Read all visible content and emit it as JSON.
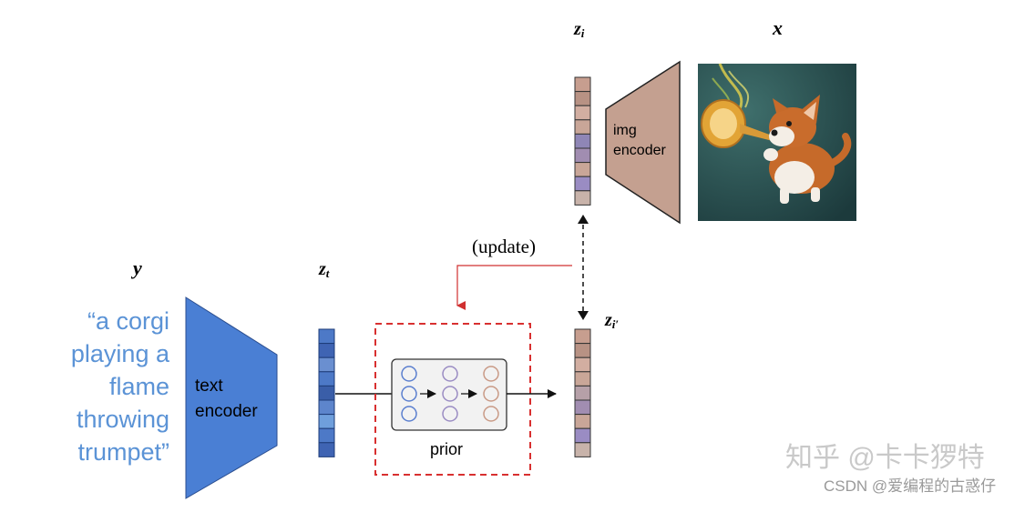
{
  "labels": {
    "y": "y",
    "zt_base": "z",
    "zt_sub": "t",
    "zi_base": "z",
    "zi_sub": "i",
    "zi2_base": "z",
    "zi2_sub": "i′",
    "x": "x",
    "update": "(update)"
  },
  "prompt_lines": [
    "“a corgi",
    "playing a",
    "flame",
    "throwing",
    "trumpet”"
  ],
  "text_encoder": [
    "text",
    "encoder"
  ],
  "img_encoder": [
    "img",
    "encoder"
  ],
  "prior_label": "prior",
  "watermark": {
    "line1": "知乎 @卡卡猡特",
    "line2": "CSDN @爱编程的古惑仔"
  },
  "colors": {
    "text_encoder": "#4a7fd4",
    "img_encoder": "#c4a090",
    "prompt_text": "#5b93d6",
    "update_arrow": "#d03030",
    "dashed_box": "#d83030"
  },
  "zt_cells": [
    "#4d79c7",
    "#3f64b3",
    "#6a8fd0",
    "#4d79c7",
    "#3a5ea8",
    "#5d85cc",
    "#6f9fdc",
    "#4d79c7",
    "#3f64b3"
  ],
  "zi_cells": [
    "#c79e8f",
    "#b89284",
    "#d2aea1",
    "#c9a698",
    "#8f86b6",
    "#a18db1",
    "#c9a698",
    "#9a8cc3",
    "#c8b3aa"
  ],
  "zi2_cells": [
    "#c79e8f",
    "#b89284",
    "#d2aea1",
    "#c9a698",
    "#b6a0a8",
    "#a18db1",
    "#c9a698",
    "#9a8cc3",
    "#c8b3aa"
  ],
  "image_alt": "corgi-playing-flame-trumpet"
}
